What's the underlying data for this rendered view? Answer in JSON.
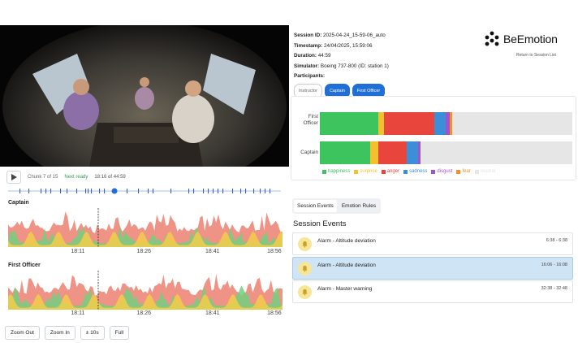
{
  "session": {
    "id_label": "Session ID:",
    "id_value": "2025-04-24_15-59-06_auto",
    "timestamp_label": "Timestamp:",
    "timestamp_value": "24/04/2025, 15:59:06",
    "duration_label": "Duration:",
    "duration_value": "44:59",
    "simulator_label": "Simulator:",
    "simulator_value": "Boeing 737-800 (ID: station 1)",
    "participants_label": "Participants:",
    "participants": [
      {
        "label": "Instructor",
        "active": false
      },
      {
        "label": "Captain",
        "active": true
      },
      {
        "label": "First Officer",
        "active": true
      }
    ]
  },
  "brand": {
    "name": "BeEmotion",
    "back_link": "Return to Session List"
  },
  "player": {
    "chunk": "Chunk 7 of 15",
    "next_status": "Next ready",
    "time": "18:16 of 44:59",
    "progress": 0.39
  },
  "charts": [
    {
      "title": "Captain",
      "ticks": [
        "18:11",
        "18:26",
        "18:41",
        "18:56"
      ]
    },
    {
      "title": "First Officer",
      "ticks": [
        "18:11",
        "18:26",
        "18:41",
        "18:56"
      ]
    }
  ],
  "zoom": {
    "zoom_out": "Zoom Out",
    "zoom_in": "Zoom In",
    "pm10": "± 10s",
    "full": "Full"
  },
  "distribution": {
    "rows": [
      {
        "label_line1": "First",
        "label_line2": "Officer",
        "segments": [
          0.23,
          0.025,
          0.2,
          0.045,
          0.015,
          0.01,
          0.475
        ]
      },
      {
        "label_line1": "Captain",
        "label_line2": "",
        "segments": [
          0.2,
          0.03,
          0.115,
          0.045,
          0.01,
          0.0,
          0.6
        ]
      }
    ],
    "legend": [
      {
        "label": "happiness",
        "color": "#3ec45e"
      },
      {
        "label": "surprise",
        "color": "#f2c12e"
      },
      {
        "label": "anger",
        "color": "#e8453c"
      },
      {
        "label": "sadness",
        "color": "#3b8fd9"
      },
      {
        "label": "disgust",
        "color": "#a452c7"
      },
      {
        "label": "fear",
        "color": "#f0912a"
      },
      {
        "label": "neutral",
        "color": "#e6e6e6"
      }
    ]
  },
  "tabs": [
    {
      "label": "Session Events",
      "active": true
    },
    {
      "label": "Emotion Rules",
      "active": false
    }
  ],
  "events": {
    "title": "Session Events",
    "items": [
      {
        "label": "Alarm - Altitude deviation",
        "time": "6:38 - 6:38",
        "selected": false
      },
      {
        "label": "Alarm - Altitude deviation",
        "time": "16:06 - 16:08",
        "selected": true
      },
      {
        "label": "Alarm - Master warning",
        "time": "32:38 - 32:48",
        "selected": false
      }
    ]
  },
  "colors": {
    "accent": "#1f6fd6",
    "selected_event": "#cfe4f5",
    "alarm_icon_bg": "#f7e59a"
  },
  "icons": {
    "play": "play-icon",
    "alarm": "bell-icon",
    "logo": "beemotion-logo-icon"
  }
}
